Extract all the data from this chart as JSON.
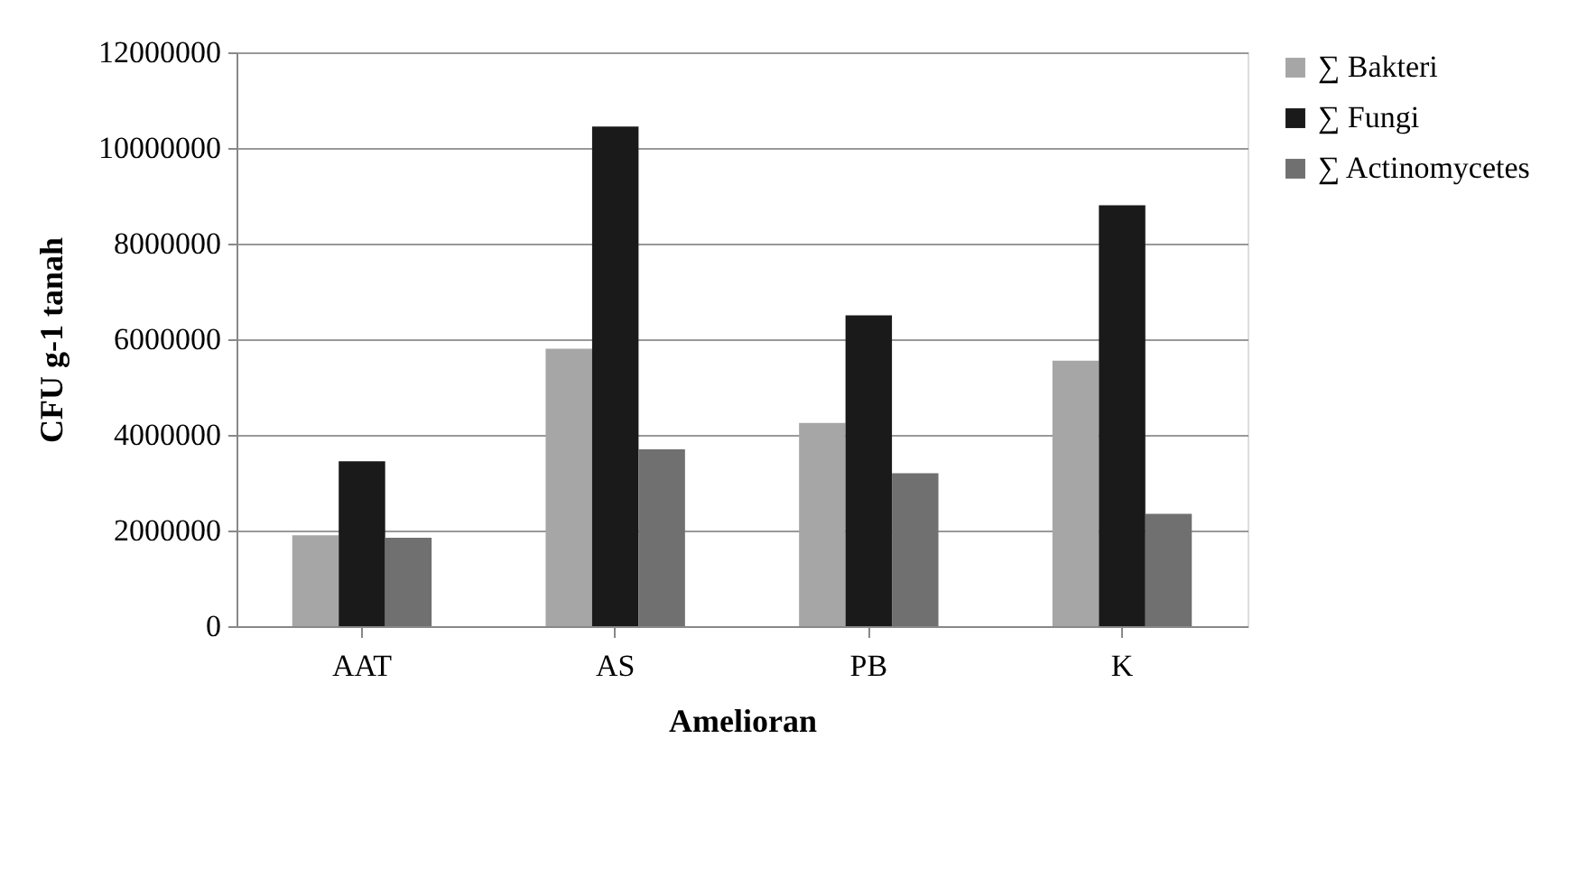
{
  "chart_data": {
    "type": "bar",
    "xlabel": "Amelioran",
    "ylabel": "CFU g-1  tanah",
    "categories": [
      "AAT",
      "AS",
      "PB",
      "K"
    ],
    "series": [
      {
        "name": "∑ Bakteri",
        "color": "#a6a6a6",
        "values": [
          1900000,
          5800000,
          4250000,
          5550000
        ]
      },
      {
        "name": "∑ Fungi",
        "color": "#1a1a1a",
        "values": [
          3450000,
          10450000,
          6500000,
          8800000
        ]
      },
      {
        "name": "∑ Actinomycetes",
        "color": "#707070",
        "values": [
          1850000,
          3700000,
          3200000,
          2350000
        ]
      }
    ],
    "ylim": [
      0,
      12000000
    ],
    "yticks": [
      0,
      2000000,
      4000000,
      6000000,
      8000000,
      10000000,
      12000000
    ],
    "grid": "y",
    "legend": "right"
  }
}
